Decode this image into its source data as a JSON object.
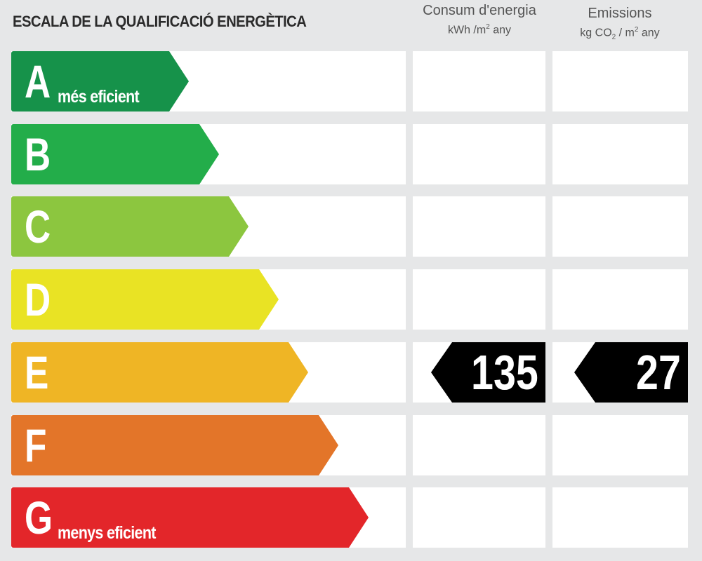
{
  "title": "ESCALA DE LA QUALIFICACIÓ ENERGÈTICA",
  "columns": {
    "energy": {
      "title": "Consum d'energia",
      "unit_main": "kWh /m",
      "unit_sup": "2",
      "unit_tail": " any"
    },
    "emissions": {
      "title": "Emissions",
      "unit_a": "kg CO",
      "unit_sub": "2",
      "unit_b": " / m",
      "unit_sup": "2",
      "unit_tail": " any"
    }
  },
  "ratings": [
    {
      "letter": "A",
      "label": "més eficient",
      "color": "#16924a",
      "length": 0
    },
    {
      "letter": "B",
      "label": "",
      "color": "#23ad4a",
      "length": 1
    },
    {
      "letter": "C",
      "label": "",
      "color": "#8cc63f",
      "length": 2
    },
    {
      "letter": "D",
      "label": "",
      "color": "#e9e324",
      "length": 3
    },
    {
      "letter": "E",
      "label": "",
      "color": "#efb525",
      "length": 4
    },
    {
      "letter": "F",
      "label": "",
      "color": "#e37529",
      "length": 5
    },
    {
      "letter": "G",
      "label": "menys eficient",
      "color": "#e3262a",
      "length": 6
    }
  ],
  "result": {
    "rating": "E",
    "energy_value": "135",
    "emissions_value": "27"
  }
}
